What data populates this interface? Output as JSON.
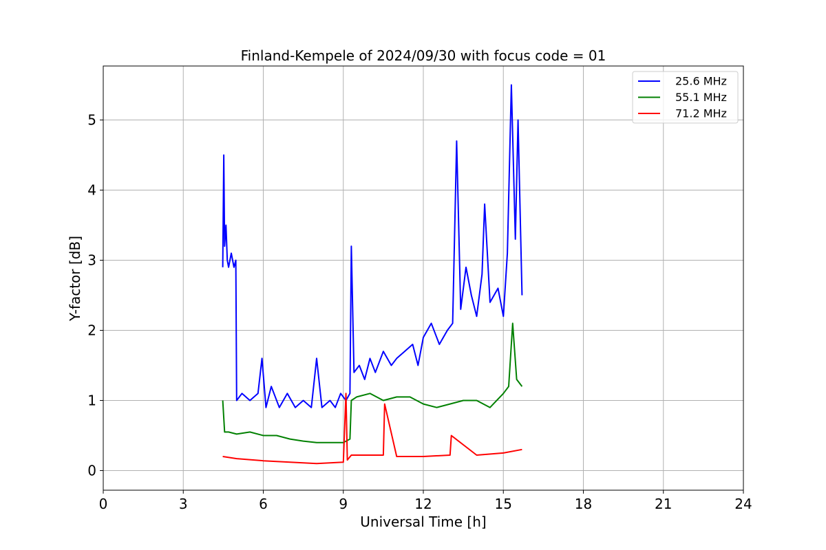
{
  "chart_data": {
    "type": "line",
    "title": "Finland-Kempele of 2024/09/30 with focus code = 01",
    "xlabel": "Universal Time [h]",
    "ylabel": "Y-factor [dB]",
    "xlim": [
      0,
      24
    ],
    "ylim": [
      -0.28,
      5.77
    ],
    "xticks": [
      0,
      3,
      6,
      9,
      12,
      15,
      18,
      21,
      24
    ],
    "yticks": [
      0,
      1,
      2,
      3,
      4,
      5
    ],
    "grid": true,
    "legend_position": "top-right",
    "series": [
      {
        "name": "25.6 MHz",
        "color": "#0000ff",
        "x": [
          4.48,
          4.52,
          4.55,
          4.6,
          4.65,
          4.7,
          4.8,
          4.9,
          4.97,
          5.0,
          5.2,
          5.5,
          5.8,
          5.95,
          6.1,
          6.3,
          6.6,
          6.9,
          7.2,
          7.5,
          7.8,
          8.0,
          8.2,
          8.5,
          8.7,
          8.9,
          9.1,
          9.25,
          9.3,
          9.4,
          9.6,
          9.8,
          10.0,
          10.2,
          10.5,
          10.8,
          11.0,
          11.3,
          11.6,
          11.8,
          12.0,
          12.3,
          12.6,
          12.9,
          13.1,
          13.25,
          13.4,
          13.6,
          13.8,
          14.0,
          14.2,
          14.3,
          14.5,
          14.8,
          15.0,
          15.15,
          15.3,
          15.45,
          15.55,
          15.7
        ],
        "y": [
          2.9,
          4.5,
          3.2,
          3.5,
          3.0,
          2.9,
          3.1,
          2.9,
          3.0,
          1.0,
          1.1,
          1.0,
          1.1,
          1.6,
          0.9,
          1.2,
          0.9,
          1.1,
          0.9,
          1.0,
          0.9,
          1.6,
          0.9,
          1.0,
          0.9,
          1.1,
          1.0,
          1.1,
          3.2,
          1.4,
          1.5,
          1.3,
          1.6,
          1.4,
          1.7,
          1.5,
          1.6,
          1.7,
          1.8,
          1.5,
          1.9,
          2.1,
          1.8,
          2.0,
          2.1,
          4.7,
          2.3,
          2.9,
          2.5,
          2.2,
          2.8,
          3.8,
          2.4,
          2.6,
          2.2,
          3.1,
          5.5,
          3.3,
          5.0,
          2.5
        ]
      },
      {
        "name": "55.1 MHz",
        "color": "#008000",
        "x": [
          4.48,
          4.55,
          4.7,
          5.0,
          5.5,
          6.0,
          6.5,
          7.0,
          7.5,
          8.0,
          8.5,
          9.0,
          9.25,
          9.3,
          9.5,
          10.0,
          10.5,
          11.0,
          11.5,
          12.0,
          12.5,
          13.0,
          13.5,
          14.0,
          14.5,
          15.0,
          15.2,
          15.35,
          15.5,
          15.7
        ],
        "y": [
          1.0,
          0.55,
          0.55,
          0.52,
          0.55,
          0.5,
          0.5,
          0.45,
          0.42,
          0.4,
          0.4,
          0.4,
          0.45,
          1.0,
          1.05,
          1.1,
          1.0,
          1.05,
          1.05,
          0.95,
          0.9,
          0.95,
          1.0,
          1.0,
          0.9,
          1.1,
          1.2,
          2.1,
          1.3,
          1.2
        ]
      },
      {
        "name": "71.2 MHz",
        "color": "#ff0000",
        "x": [
          4.48,
          5.0,
          6.0,
          7.0,
          8.0,
          9.0,
          9.1,
          9.15,
          9.3,
          10.0,
          10.5,
          10.55,
          11.0,
          12.0,
          13.0,
          13.05,
          14.0,
          15.0,
          15.7
        ],
        "y": [
          0.2,
          0.17,
          0.14,
          0.12,
          0.1,
          0.12,
          1.1,
          0.15,
          0.22,
          0.22,
          0.22,
          0.95,
          0.2,
          0.2,
          0.22,
          0.5,
          0.22,
          0.25,
          0.3
        ]
      }
    ]
  }
}
